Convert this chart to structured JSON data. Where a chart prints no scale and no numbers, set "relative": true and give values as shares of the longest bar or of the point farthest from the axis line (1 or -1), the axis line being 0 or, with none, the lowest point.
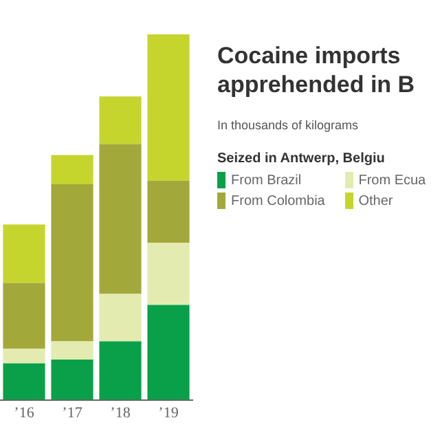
{
  "chart_data": {
    "type": "bar",
    "stacked": true,
    "relative": true,
    "title": "Cocaine imports apprehended in B",
    "subtitle": "In thousands of kilograms",
    "legend_title": "Seized in Antwerp, Belgiu",
    "legend": "right",
    "categories": [
      "’16",
      "’17",
      "’18",
      "’19"
    ],
    "series": [
      {
        "name": "From Brazil",
        "color": "#0aa04a",
        "values": [
          0.1,
          0.11,
          0.16,
          0.26
        ]
      },
      {
        "name": "From Ecua",
        "color": "#e3ebb0",
        "values": [
          0.04,
          0.05,
          0.13,
          0.17
        ]
      },
      {
        "name": "From Colombia",
        "color": "#a3a83a",
        "values": [
          0.18,
          0.43,
          0.41,
          0.17
        ]
      },
      {
        "name": "Other",
        "color": "#c5d52e",
        "values": [
          0.16,
          0.08,
          0.13,
          0.4
        ]
      }
    ]
  }
}
